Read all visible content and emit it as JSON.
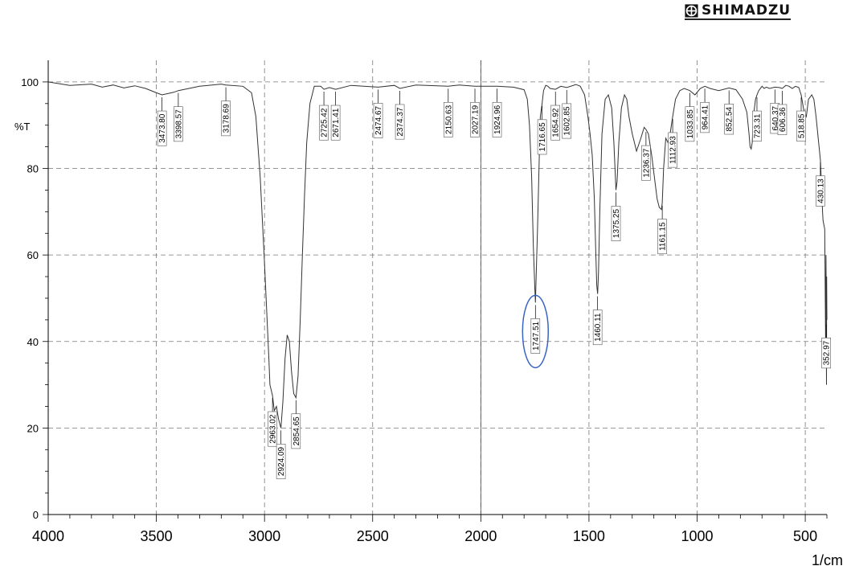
{
  "brand": {
    "name": "SHIMADZU"
  },
  "chart_data": {
    "type": "line",
    "title": "",
    "xlabel": "1/cm",
    "ylabel": "%T",
    "xlim": [
      4000,
      400
    ],
    "ylim": [
      0,
      105
    ],
    "x_ticks": [
      4000,
      3500,
      3000,
      2500,
      2000,
      1500,
      1000,
      500
    ],
    "y_ticks": [
      0,
      20,
      40,
      60,
      80,
      100
    ],
    "grid": true,
    "series": [
      {
        "color": "#333333",
        "x": [
          4000,
          3900,
          3800,
          3750,
          3700,
          3650,
          3600,
          3550,
          3500,
          3473.8,
          3420,
          3398.57,
          3300,
          3200,
          3178.69,
          3100,
          3060,
          3040,
          3020,
          3010,
          3000,
          2990,
          2980,
          2975,
          2963.02,
          2955,
          2945,
          2935,
          2924.09,
          2915,
          2905,
          2895,
          2885,
          2875,
          2865,
          2860,
          2854.65,
          2845,
          2835,
          2825,
          2815,
          2805,
          2790,
          2770,
          2740,
          2725.42,
          2700,
          2671.41,
          2600,
          2474.67,
          2400,
          2374.37,
          2300,
          2150.63,
          2100,
          2027.19,
          1924.96,
          1850,
          1800,
          1785,
          1775,
          1765,
          1757,
          1750,
          1747.51,
          1744,
          1738,
          1730,
          1725,
          1716.65,
          1710,
          1700,
          1690,
          1680,
          1654.92,
          1630,
          1602.85,
          1560,
          1540,
          1520,
          1505,
          1495,
          1485,
          1475,
          1468,
          1464,
          1460.11,
          1456,
          1450,
          1440,
          1425,
          1410,
          1395,
          1385,
          1378,
          1375.25,
          1370,
          1362,
          1350,
          1336,
          1325,
          1315,
          1300,
          1280,
          1260,
          1245,
          1236.37,
          1225,
          1210,
          1195,
          1185,
          1175,
          1165,
          1161.15,
          1155,
          1145,
          1135,
          1125,
          1112.93,
          1100,
          1080,
          1060,
          1033.85,
          1010,
          985,
          964.41,
          940,
          900,
          852.54,
          820,
          790,
          770,
          760,
          755,
          750,
          745,
          740,
          730,
          723.31,
          715,
          700,
          690,
          680,
          665,
          640.37,
          620,
          606.36,
          590,
          575,
          560,
          545,
          530,
          518.85,
          505,
          495,
          485,
          470,
          460,
          450,
          440,
          430.13,
          425,
          420,
          418,
          414,
          410,
          406,
          404,
          402,
          401,
          400
        ],
        "y": [
          100,
          99.2,
          99.5,
          98.8,
          99.3,
          98.6,
          99.1,
          98.5,
          97.5,
          97.0,
          97.6,
          98.0,
          99.0,
          99.5,
          99.3,
          99.0,
          97.5,
          92.0,
          78.0,
          68.0,
          58.0,
          47.0,
          36.0,
          30.0,
          27.5,
          24.0,
          25.0,
          22.0,
          20.0,
          26.0,
          36.0,
          41.5,
          40.0,
          33.0,
          28.0,
          27.5,
          27.0,
          32.0,
          45.0,
          60.0,
          74.0,
          86.0,
          95.0,
          99.0,
          99.0,
          98.3,
          98.7,
          98.3,
          99.2,
          98.8,
          99.2,
          98.5,
          99.3,
          99.0,
          99.3,
          99.0,
          99.0,
          98.8,
          98.2,
          96.0,
          90.0,
          78.0,
          62.0,
          52.0,
          49.0,
          55.0,
          66.0,
          82.0,
          92.0,
          95.0,
          98.0,
          99.2,
          99.0,
          98.5,
          98.3,
          99.0,
          98.7,
          99.4,
          99.0,
          97.0,
          92.0,
          88.0,
          83.0,
          73.0,
          60.0,
          53.0,
          51.0,
          56.0,
          70.0,
          88.0,
          96.0,
          97.0,
          94.0,
          86.0,
          78.0,
          75.0,
          77.0,
          86.0,
          94.0,
          97.0,
          96.0,
          92.0,
          88.0,
          84.0,
          87.0,
          89.5,
          89.0,
          88.0,
          83.0,
          77.0,
          73.0,
          71.0,
          70.5,
          72.0,
          80.0,
          87.0,
          86.0,
          88.0,
          92.0,
          96.0,
          98.0,
          98.5,
          98.0,
          97.0,
          98.5,
          99.0,
          98.5,
          98.0,
          98.6,
          98.2,
          96.0,
          93.0,
          88.0,
          85.0,
          84.5,
          86.0,
          92.0,
          96.0,
          97.0,
          98.0,
          99.0,
          98.5,
          98.8,
          98.5,
          98.8,
          98.7,
          98.5,
          99.2,
          99.0,
          98.5,
          99.0,
          98.7,
          97.0,
          93.0,
          92.0,
          96.0,
          97.0,
          96.0,
          92.0,
          87.0,
          82.0,
          76.0,
          70.0,
          68.0,
          67.0,
          66.0,
          40.0,
          60.0,
          30.0,
          55.0,
          45.0
        ]
      }
    ],
    "peaks": [
      {
        "x": 3473.8,
        "label": "3473.80",
        "pos": "above"
      },
      {
        "x": 3398.57,
        "label": "3398.57",
        "pos": "above"
      },
      {
        "x": 3178.69,
        "label": "3178.69",
        "pos": "above"
      },
      {
        "x": 2963.02,
        "label": "2963.02",
        "pos": "below"
      },
      {
        "x": 2924.09,
        "label": "2924.09",
        "pos": "below"
      },
      {
        "x": 2854.65,
        "label": "2854.65",
        "pos": "below"
      },
      {
        "x": 2725.42,
        "label": "2725.42",
        "pos": "above"
      },
      {
        "x": 2671.41,
        "label": "2671.41",
        "pos": "above"
      },
      {
        "x": 2474.67,
        "label": "2474.67",
        "pos": "above"
      },
      {
        "x": 2374.37,
        "label": "2374.37",
        "pos": "above"
      },
      {
        "x": 2150.63,
        "label": "2150.63",
        "pos": "above"
      },
      {
        "x": 2027.19,
        "label": "2027.19",
        "pos": "above"
      },
      {
        "x": 1924.96,
        "label": "1924.96",
        "pos": "above"
      },
      {
        "x": 1747.51,
        "label": "1747.51",
        "pos": "below",
        "highlight": true
      },
      {
        "x": 1716.65,
        "label": "1716.65",
        "pos": "above"
      },
      {
        "x": 1654.92,
        "label": "1654.92",
        "pos": "above"
      },
      {
        "x": 1602.85,
        "label": "1602.85",
        "pos": "above"
      },
      {
        "x": 1460.11,
        "label": "1460.11",
        "pos": "below"
      },
      {
        "x": 1375.25,
        "label": "1375.25",
        "pos": "above"
      },
      {
        "x": 1236.37,
        "label": "1236.37",
        "pos": "above"
      },
      {
        "x": 1161.15,
        "label": "1161.15",
        "pos": "below"
      },
      {
        "x": 1112.93,
        "label": "1112.93",
        "pos": "above"
      },
      {
        "x": 1033.85,
        "label": "1033.85",
        "pos": "above"
      },
      {
        "x": 964.41,
        "label": "964.41",
        "pos": "above"
      },
      {
        "x": 852.54,
        "label": "852.54",
        "pos": "above"
      },
      {
        "x": 723.31,
        "label": "723.31",
        "pos": "below"
      },
      {
        "x": 640.37,
        "label": "640.37",
        "pos": "above"
      },
      {
        "x": 606.36,
        "label": "606.36",
        "pos": "above"
      },
      {
        "x": 518.85,
        "label": "518.85",
        "pos": "above"
      },
      {
        "x": 430.13,
        "label": "430.13",
        "pos": "above"
      },
      {
        "x": 402.97,
        "label": "352.97",
        "pos": "above"
      }
    ],
    "highlight_color": "#3a64c4"
  }
}
